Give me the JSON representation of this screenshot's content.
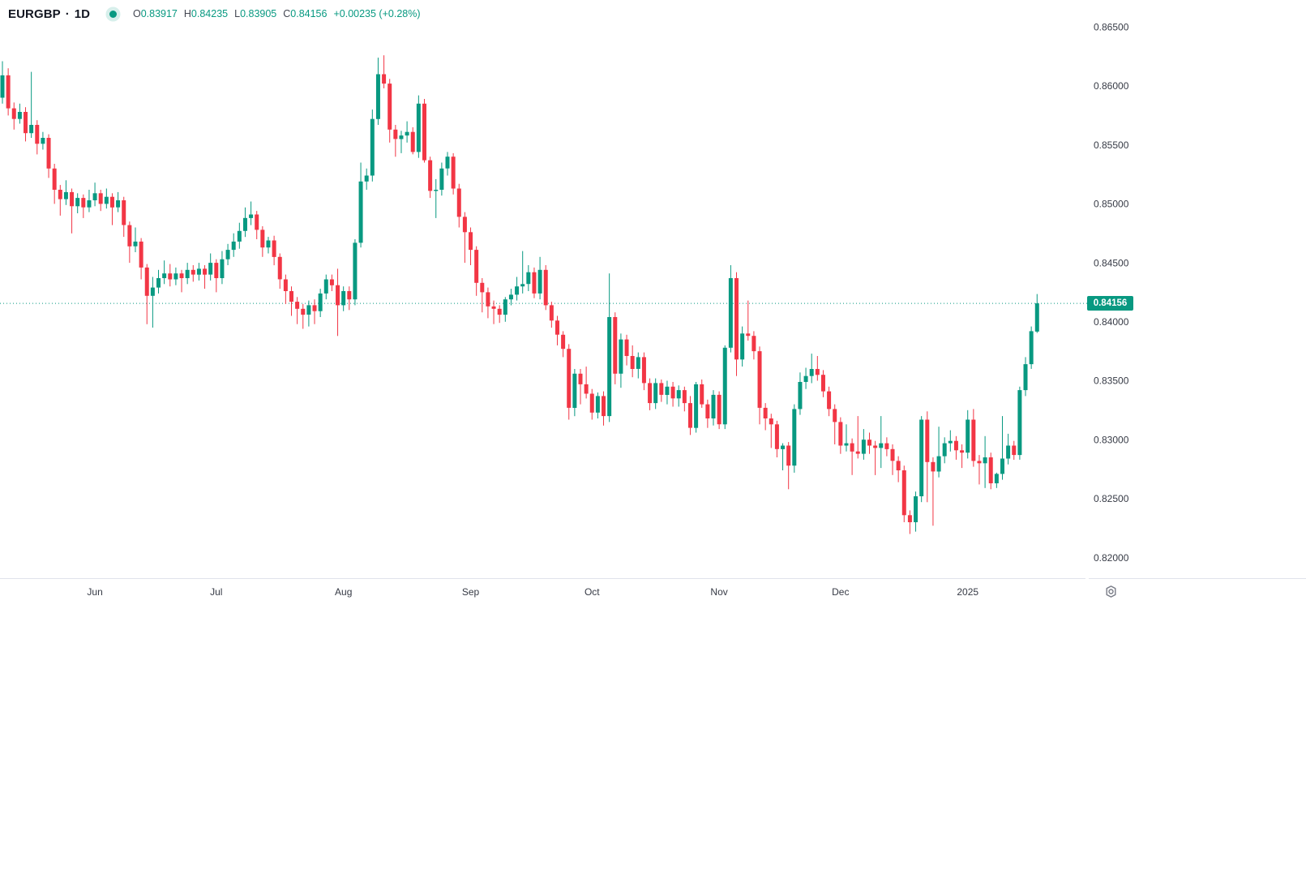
{
  "header": {
    "symbol": "EURGBP",
    "separator": "·",
    "interval": "1D",
    "ohlc": {
      "open_label": "O",
      "open": "0.83917",
      "high_label": "H",
      "high": "0.84235",
      "low_label": "L",
      "low": "0.83905",
      "close_label": "C",
      "close": "0.84156",
      "change": "+0.00235 (+0.28%)"
    }
  },
  "price_scale": {
    "labels": [
      "0.86500",
      "0.86000",
      "0.85500",
      "0.85000",
      "0.84500",
      "0.84000",
      "0.83500",
      "0.83000",
      "0.82500",
      "0.82000"
    ],
    "last_price_badge": "0.84156"
  },
  "time_scale": {
    "labels": [
      {
        "text": "Jun",
        "index": 16
      },
      {
        "text": "Jul",
        "index": 37
      },
      {
        "text": "Aug",
        "index": 59
      },
      {
        "text": "Sep",
        "index": 81
      },
      {
        "text": "Oct",
        "index": 102
      },
      {
        "text": "Nov",
        "index": 124
      },
      {
        "text": "Dec",
        "index": 145
      },
      {
        "text": "2025",
        "index": 167
      }
    ]
  },
  "colors": {
    "up": "#089981",
    "down": "#f23645",
    "price_line": "#089981",
    "badge_bg": "#089981",
    "badge_text": "#ffffff",
    "axis_text": "#363a45",
    "separator": "#e0e3eb",
    "icon": "#787b86"
  },
  "settings": {
    "gear_icon": "gear-icon"
  },
  "chart_data": {
    "type": "candlestick",
    "title": "EURGBP · 1D",
    "symbol": "EURGBP",
    "interval": "1D",
    "legend_last_bar": {
      "open": 0.83917,
      "high": 0.84235,
      "low": 0.83905,
      "close": 0.84156,
      "change": 0.00235,
      "change_pct": 0.28
    },
    "last_price": 0.84156,
    "price_line_value": 0.84156,
    "y_ticks": [
      0.865,
      0.86,
      0.855,
      0.85,
      0.845,
      0.84,
      0.835,
      0.83,
      0.825,
      0.82
    ],
    "ylim": [
      0.8182,
      0.8673
    ],
    "grid": false,
    "legend_position": "top-left",
    "candles_format": [
      "open",
      "high",
      "low",
      "close"
    ],
    "candles": [
      [
        0.859,
        0.8621,
        0.8585,
        0.8609
      ],
      [
        0.8609,
        0.8615,
        0.8575,
        0.8581
      ],
      [
        0.8581,
        0.8586,
        0.8563,
        0.8572
      ],
      [
        0.8572,
        0.8585,
        0.8568,
        0.8578
      ],
      [
        0.8578,
        0.8582,
        0.8553,
        0.856
      ],
      [
        0.856,
        0.8612,
        0.8556,
        0.8567
      ],
      [
        0.8567,
        0.8571,
        0.8542,
        0.8551
      ],
      [
        0.8551,
        0.8561,
        0.8546,
        0.8556
      ],
      [
        0.8556,
        0.8559,
        0.8522,
        0.853
      ],
      [
        0.853,
        0.8534,
        0.85,
        0.8512
      ],
      [
        0.8512,
        0.8516,
        0.849,
        0.8504
      ],
      [
        0.8504,
        0.852,
        0.8499,
        0.851
      ],
      [
        0.851,
        0.8513,
        0.8475,
        0.8498
      ],
      [
        0.8498,
        0.8509,
        0.8492,
        0.8505
      ],
      [
        0.8505,
        0.8508,
        0.8488,
        0.8497
      ],
      [
        0.8497,
        0.8512,
        0.8493,
        0.8503
      ],
      [
        0.8503,
        0.8518,
        0.8498,
        0.8509
      ],
      [
        0.8509,
        0.8512,
        0.8494,
        0.85
      ],
      [
        0.85,
        0.8513,
        0.8496,
        0.8506
      ],
      [
        0.8506,
        0.8509,
        0.8482,
        0.8497
      ],
      [
        0.8497,
        0.851,
        0.8493,
        0.8503
      ],
      [
        0.8503,
        0.8506,
        0.8472,
        0.8482
      ],
      [
        0.8482,
        0.8485,
        0.845,
        0.8464
      ],
      [
        0.8464,
        0.848,
        0.8459,
        0.8468
      ],
      [
        0.8468,
        0.8471,
        0.8436,
        0.8446
      ],
      [
        0.8446,
        0.8449,
        0.8398,
        0.8422
      ],
      [
        0.8422,
        0.8438,
        0.8395,
        0.8429
      ],
      [
        0.8429,
        0.8444,
        0.8424,
        0.8437
      ],
      [
        0.8437,
        0.8452,
        0.8432,
        0.8441
      ],
      [
        0.8441,
        0.8449,
        0.843,
        0.8436
      ],
      [
        0.8436,
        0.8446,
        0.8431,
        0.8441
      ],
      [
        0.8441,
        0.8444,
        0.8425,
        0.8437
      ],
      [
        0.8437,
        0.845,
        0.8432,
        0.8444
      ],
      [
        0.8444,
        0.8448,
        0.8434,
        0.844
      ],
      [
        0.844,
        0.845,
        0.8435,
        0.8445
      ],
      [
        0.8445,
        0.8448,
        0.8428,
        0.844
      ],
      [
        0.844,
        0.8458,
        0.8435,
        0.845
      ],
      [
        0.845,
        0.8453,
        0.8425,
        0.8437
      ],
      [
        0.8437,
        0.846,
        0.8432,
        0.8453
      ],
      [
        0.8453,
        0.8466,
        0.8448,
        0.8461
      ],
      [
        0.8461,
        0.8475,
        0.8455,
        0.8468
      ],
      [
        0.8468,
        0.8484,
        0.8462,
        0.8477
      ],
      [
        0.8477,
        0.8497,
        0.8472,
        0.8488
      ],
      [
        0.8488,
        0.8502,
        0.8482,
        0.8491
      ],
      [
        0.8491,
        0.8494,
        0.847,
        0.8478
      ],
      [
        0.8478,
        0.8481,
        0.8455,
        0.8463
      ],
      [
        0.8463,
        0.8472,
        0.8458,
        0.8469
      ],
      [
        0.8469,
        0.8473,
        0.8448,
        0.8455
      ],
      [
        0.8455,
        0.8458,
        0.8428,
        0.8436
      ],
      [
        0.8436,
        0.844,
        0.8415,
        0.8426
      ],
      [
        0.8426,
        0.843,
        0.8405,
        0.8417
      ],
      [
        0.8417,
        0.8421,
        0.8398,
        0.8411
      ],
      [
        0.8411,
        0.8415,
        0.8394,
        0.8406
      ],
      [
        0.8406,
        0.8418,
        0.8396,
        0.8414
      ],
      [
        0.8414,
        0.8419,
        0.8398,
        0.8409
      ],
      [
        0.8409,
        0.8428,
        0.8404,
        0.8424
      ],
      [
        0.8424,
        0.844,
        0.8419,
        0.8436
      ],
      [
        0.8436,
        0.844,
        0.8426,
        0.8431
      ],
      [
        0.8431,
        0.8445,
        0.8388,
        0.8414
      ],
      [
        0.8414,
        0.843,
        0.8409,
        0.8426
      ],
      [
        0.8426,
        0.843,
        0.841,
        0.8419
      ],
      [
        0.8419,
        0.847,
        0.8414,
        0.8467
      ],
      [
        0.8467,
        0.8535,
        0.8463,
        0.8519
      ],
      [
        0.8519,
        0.853,
        0.8512,
        0.8524
      ],
      [
        0.8524,
        0.858,
        0.8519,
        0.8572
      ],
      [
        0.8572,
        0.8624,
        0.8567,
        0.861
      ],
      [
        0.861,
        0.8626,
        0.8598,
        0.8602
      ],
      [
        0.8602,
        0.8606,
        0.8552,
        0.8563
      ],
      [
        0.8563,
        0.8567,
        0.854,
        0.8555
      ],
      [
        0.8555,
        0.8562,
        0.8543,
        0.8558
      ],
      [
        0.8558,
        0.857,
        0.8552,
        0.8561
      ],
      [
        0.8561,
        0.8565,
        0.8542,
        0.8544
      ],
      [
        0.8544,
        0.8592,
        0.8539,
        0.8585
      ],
      [
        0.8585,
        0.8589,
        0.8535,
        0.8537
      ],
      [
        0.8537,
        0.854,
        0.8505,
        0.8511
      ],
      [
        0.8511,
        0.8521,
        0.8488,
        0.8512
      ],
      [
        0.8512,
        0.8535,
        0.8507,
        0.853
      ],
      [
        0.853,
        0.8544,
        0.8524,
        0.854
      ],
      [
        0.854,
        0.8543,
        0.8508,
        0.8513
      ],
      [
        0.8513,
        0.8517,
        0.848,
        0.8489
      ],
      [
        0.8489,
        0.8493,
        0.845,
        0.8476
      ],
      [
        0.8476,
        0.848,
        0.8448,
        0.8461
      ],
      [
        0.8461,
        0.8464,
        0.8422,
        0.8433
      ],
      [
        0.8433,
        0.8437,
        0.8408,
        0.8425
      ],
      [
        0.8425,
        0.8429,
        0.8403,
        0.8413
      ],
      [
        0.8413,
        0.8418,
        0.8398,
        0.8411
      ],
      [
        0.8411,
        0.8414,
        0.8399,
        0.8406
      ],
      [
        0.8406,
        0.8421,
        0.84,
        0.8419
      ],
      [
        0.8419,
        0.8428,
        0.8414,
        0.8423
      ],
      [
        0.8423,
        0.8438,
        0.8418,
        0.843
      ],
      [
        0.843,
        0.846,
        0.8424,
        0.8432
      ],
      [
        0.8432,
        0.8448,
        0.8426,
        0.8442
      ],
      [
        0.8442,
        0.8446,
        0.842,
        0.8424
      ],
      [
        0.8424,
        0.8455,
        0.8419,
        0.8444
      ],
      [
        0.8444,
        0.8448,
        0.841,
        0.8414
      ],
      [
        0.8414,
        0.8417,
        0.8395,
        0.8401
      ],
      [
        0.8401,
        0.8405,
        0.838,
        0.8389
      ],
      [
        0.8389,
        0.8392,
        0.837,
        0.8377
      ],
      [
        0.8377,
        0.8381,
        0.8317,
        0.8327
      ],
      [
        0.8327,
        0.836,
        0.832,
        0.8356
      ],
      [
        0.8356,
        0.836,
        0.833,
        0.8347
      ],
      [
        0.8347,
        0.8362,
        0.8335,
        0.8339
      ],
      [
        0.8339,
        0.8343,
        0.8317,
        0.8323
      ],
      [
        0.8323,
        0.834,
        0.8318,
        0.8337
      ],
      [
        0.8337,
        0.8341,
        0.8312,
        0.832
      ],
      [
        0.832,
        0.8441,
        0.8315,
        0.8404
      ],
      [
        0.8404,
        0.8408,
        0.8347,
        0.8356
      ],
      [
        0.8356,
        0.839,
        0.8344,
        0.8385
      ],
      [
        0.8385,
        0.8389,
        0.8363,
        0.8371
      ],
      [
        0.8371,
        0.838,
        0.8353,
        0.836
      ],
      [
        0.836,
        0.8374,
        0.8352,
        0.837
      ],
      [
        0.837,
        0.8374,
        0.8342,
        0.8348
      ],
      [
        0.8348,
        0.8352,
        0.8325,
        0.8331
      ],
      [
        0.8331,
        0.8352,
        0.8326,
        0.8348
      ],
      [
        0.8348,
        0.8351,
        0.8332,
        0.8338
      ],
      [
        0.8338,
        0.835,
        0.833,
        0.8345
      ],
      [
        0.8345,
        0.8349,
        0.8328,
        0.8335
      ],
      [
        0.8335,
        0.8346,
        0.8328,
        0.8342
      ],
      [
        0.8342,
        0.8345,
        0.8324,
        0.8331
      ],
      [
        0.8331,
        0.8337,
        0.8304,
        0.831
      ],
      [
        0.831,
        0.8349,
        0.8306,
        0.8347
      ],
      [
        0.8347,
        0.8351,
        0.8327,
        0.833
      ],
      [
        0.833,
        0.8334,
        0.831,
        0.8318
      ],
      [
        0.8318,
        0.8342,
        0.8312,
        0.8338
      ],
      [
        0.8338,
        0.8341,
        0.8309,
        0.8313
      ],
      [
        0.8313,
        0.838,
        0.8309,
        0.8378
      ],
      [
        0.8378,
        0.8448,
        0.8374,
        0.8437
      ],
      [
        0.8437,
        0.8442,
        0.8354,
        0.8368
      ],
      [
        0.8368,
        0.8396,
        0.8362,
        0.839
      ],
      [
        0.839,
        0.8418,
        0.8384,
        0.8388
      ],
      [
        0.8388,
        0.8392,
        0.8368,
        0.8375
      ],
      [
        0.8375,
        0.8379,
        0.8313,
        0.8327
      ],
      [
        0.8327,
        0.8331,
        0.8308,
        0.8318
      ],
      [
        0.8318,
        0.8322,
        0.8293,
        0.8313
      ],
      [
        0.8313,
        0.8316,
        0.8285,
        0.8292
      ],
      [
        0.8292,
        0.8297,
        0.8274,
        0.8295
      ],
      [
        0.8295,
        0.8298,
        0.8258,
        0.8278
      ],
      [
        0.8278,
        0.833,
        0.8272,
        0.8326
      ],
      [
        0.8326,
        0.8357,
        0.8321,
        0.8349
      ],
      [
        0.8349,
        0.8361,
        0.8343,
        0.8354
      ],
      [
        0.8354,
        0.8373,
        0.8348,
        0.836
      ],
      [
        0.836,
        0.8371,
        0.835,
        0.8355
      ],
      [
        0.8355,
        0.8359,
        0.8336,
        0.8341
      ],
      [
        0.8341,
        0.8345,
        0.832,
        0.8326
      ],
      [
        0.8326,
        0.833,
        0.8296,
        0.8315
      ],
      [
        0.8315,
        0.8319,
        0.8288,
        0.8295
      ],
      [
        0.8295,
        0.8313,
        0.829,
        0.8297
      ],
      [
        0.8297,
        0.8301,
        0.827,
        0.829
      ],
      [
        0.829,
        0.832,
        0.8284,
        0.8288
      ],
      [
        0.8288,
        0.8309,
        0.8283,
        0.83
      ],
      [
        0.83,
        0.8306,
        0.8288,
        0.8295
      ],
      [
        0.8295,
        0.8299,
        0.827,
        0.8293
      ],
      [
        0.8293,
        0.832,
        0.8276,
        0.8297
      ],
      [
        0.8297,
        0.8302,
        0.8286,
        0.8292
      ],
      [
        0.8292,
        0.8296,
        0.827,
        0.8282
      ],
      [
        0.8282,
        0.8286,
        0.8264,
        0.8274
      ],
      [
        0.8274,
        0.8278,
        0.823,
        0.8236
      ],
      [
        0.8236,
        0.824,
        0.822,
        0.823
      ],
      [
        0.823,
        0.8256,
        0.8222,
        0.8252
      ],
      [
        0.8252,
        0.832,
        0.8247,
        0.8317
      ],
      [
        0.8317,
        0.8324,
        0.8247,
        0.8281
      ],
      [
        0.8281,
        0.8285,
        0.8227,
        0.8273
      ],
      [
        0.8273,
        0.8311,
        0.8268,
        0.8286
      ],
      [
        0.8286,
        0.8302,
        0.828,
        0.8297
      ],
      [
        0.8297,
        0.8308,
        0.829,
        0.8299
      ],
      [
        0.8299,
        0.8303,
        0.8283,
        0.8291
      ],
      [
        0.8291,
        0.8296,
        0.8276,
        0.8289
      ],
      [
        0.8289,
        0.8325,
        0.8284,
        0.8317
      ],
      [
        0.8317,
        0.8326,
        0.8277,
        0.8282
      ],
      [
        0.8282,
        0.8287,
        0.8262,
        0.828
      ],
      [
        0.828,
        0.8303,
        0.8259,
        0.8285
      ],
      [
        0.8285,
        0.8289,
        0.8258,
        0.8263
      ],
      [
        0.8263,
        0.8272,
        0.8259,
        0.8271
      ],
      [
        0.8271,
        0.832,
        0.8266,
        0.8284
      ],
      [
        0.8284,
        0.8305,
        0.8279,
        0.8295
      ],
      [
        0.8295,
        0.8299,
        0.8283,
        0.8287
      ],
      [
        0.8287,
        0.8345,
        0.8283,
        0.8342
      ],
      [
        0.8342,
        0.837,
        0.8337,
        0.8364
      ],
      [
        0.8364,
        0.8396,
        0.836,
        0.8392
      ],
      [
        0.83917,
        0.84235,
        0.83905,
        0.84156
      ]
    ]
  }
}
